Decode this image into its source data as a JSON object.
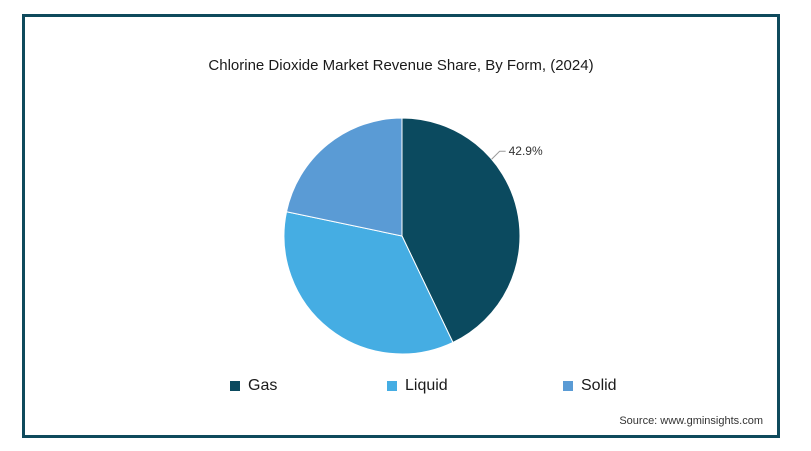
{
  "chart_data": {
    "type": "pie",
    "title": "Chlorine Dioxide Market Revenue Share, By Form, (2024)",
    "slices": [
      {
        "label": "Gas",
        "value": 42.9,
        "color": "#0b4a5f",
        "data_label": "42.9%"
      },
      {
        "label": "Liquid",
        "value": 35.4,
        "color": "#45ade3"
      },
      {
        "label": "Solid",
        "value": 21.7,
        "color": "#5a9bd5"
      }
    ],
    "legend_position": "bottom"
  },
  "source": "Source: www.gminsights.com"
}
